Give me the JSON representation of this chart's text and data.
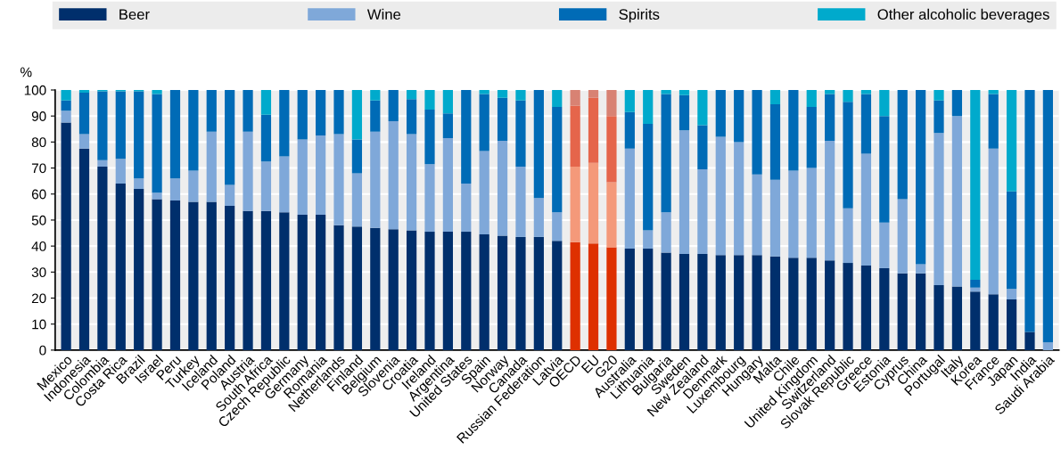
{
  "chart_data": {
    "type": "bar",
    "stacked": true,
    "ylabel": "%",
    "ylim": [
      0,
      100
    ],
    "yticks": [
      0,
      10,
      20,
      30,
      40,
      50,
      60,
      70,
      80,
      90,
      100
    ],
    "grid": "y",
    "legend": "top",
    "categories": [
      "Mexico",
      "Indonesia",
      "Colombia",
      "Costa Rica",
      "Brazil",
      "Israel",
      "Peru",
      "Turkey",
      "Iceland",
      "Poland",
      "Austria",
      "South Africa",
      "Czech Republic",
      "Germany",
      "Romania",
      "Netherlands",
      "Finland",
      "Belgium",
      "Slovenia",
      "Croatia",
      "Ireland",
      "Argentina",
      "United States",
      "Spain",
      "Norway",
      "Canada",
      "Russian Federation",
      "Latvia",
      "OECD",
      "EU",
      "G20",
      "Australia",
      "Lithuania",
      "Bulgaria",
      "Sweden",
      "New Zealand",
      "Denmark",
      "Luxembourg",
      "Hungary",
      "Malta",
      "Chile",
      "United Kingdom",
      "Switzerland",
      "Slovak Republic",
      "Greece",
      "Estonia",
      "Cyprus",
      "China",
      "Portugal",
      "Italy",
      "Korea",
      "France",
      "Japan",
      "India",
      "Saudi Arabia"
    ],
    "series": [
      {
        "name": "Beer",
        "color": "#002f6c",
        "colors": [
          "#002f6c",
          "#002f6c",
          "#002f6c",
          "#002f6c",
          "#002f6c",
          "#002f6c",
          "#002f6c",
          "#002f6c",
          "#002f6c",
          "#002f6c",
          "#002f6c",
          "#002f6c",
          "#002f6c",
          "#002f6c",
          "#002f6c",
          "#002f6c",
          "#002f6c",
          "#002f6c",
          "#002f6c",
          "#002f6c",
          "#002f6c",
          "#002f6c",
          "#002f6c",
          "#002f6c",
          "#002f6c",
          "#002f6c",
          "#002f6c",
          "#002f6c",
          "#de3000",
          "#de3000",
          "#de3000",
          "#002f6c",
          "#002f6c",
          "#002f6c",
          "#002f6c",
          "#002f6c",
          "#002f6c",
          "#002f6c",
          "#002f6c",
          "#002f6c",
          "#002f6c",
          "#002f6c",
          "#002f6c",
          "#002f6c",
          "#002f6c",
          "#002f6c",
          "#002f6c",
          "#002f6c",
          "#002f6c",
          "#002f6c",
          "#002f6c",
          "#002f6c",
          "#002f6c",
          "#002f6c",
          "#002f6c"
        ],
        "values": [
          87.5,
          77.5,
          70.5,
          64,
          62,
          58,
          57.5,
          57,
          57,
          55.5,
          53.5,
          53.5,
          53,
          52,
          52,
          48,
          47.5,
          47,
          46.5,
          46,
          45.5,
          45.5,
          45.5,
          44.5,
          44,
          43.5,
          43.5,
          42,
          41.5,
          41,
          39.5,
          39,
          39,
          37.5,
          37,
          37,
          36.5,
          36.5,
          36.5,
          36,
          35.5,
          35.5,
          34.5,
          33.5,
          32.5,
          31.5,
          29.5,
          29.5,
          25,
          24.5,
          22.5,
          21.5,
          19.5,
          7,
          0
        ]
      },
      {
        "name": "Wine",
        "color": "#7fa8d9",
        "colors": [
          "#7fa8d9",
          "#7fa8d9",
          "#7fa8d9",
          "#7fa8d9",
          "#7fa8d9",
          "#7fa8d9",
          "#7fa8d9",
          "#7fa8d9",
          "#7fa8d9",
          "#7fa8d9",
          "#7fa8d9",
          "#7fa8d9",
          "#7fa8d9",
          "#7fa8d9",
          "#7fa8d9",
          "#7fa8d9",
          "#7fa8d9",
          "#7fa8d9",
          "#7fa8d9",
          "#7fa8d9",
          "#7fa8d9",
          "#7fa8d9",
          "#7fa8d9",
          "#7fa8d9",
          "#7fa8d9",
          "#7fa8d9",
          "#7fa8d9",
          "#7fa8d9",
          "#f4997a",
          "#f4997a",
          "#f4997a",
          "#7fa8d9",
          "#7fa8d9",
          "#7fa8d9",
          "#7fa8d9",
          "#7fa8d9",
          "#7fa8d9",
          "#7fa8d9",
          "#7fa8d9",
          "#7fa8d9",
          "#7fa8d9",
          "#7fa8d9",
          "#7fa8d9",
          "#7fa8d9",
          "#7fa8d9",
          "#7fa8d9",
          "#7fa8d9",
          "#7fa8d9",
          "#7fa8d9",
          "#7fa8d9",
          "#7fa8d9",
          "#7fa8d9",
          "#7fa8d9",
          "#7fa8d9",
          "#7fa8d9"
        ],
        "values": [
          4.5,
          5.5,
          2.5,
          9.5,
          4,
          2.5,
          8.5,
          12,
          27,
          8,
          30.5,
          19,
          21.5,
          29,
          30.5,
          35,
          20.5,
          37,
          41.5,
          37,
          26,
          36,
          18.5,
          32,
          36.5,
          27,
          15,
          11,
          29,
          31,
          25,
          38.5,
          7,
          15.5,
          47.5,
          32.5,
          45.5,
          43.5,
          31,
          29.5,
          33.5,
          34.5,
          46,
          21,
          43,
          17.5,
          28.5,
          3.5,
          58.5,
          65.5,
          1.5,
          56,
          4,
          0,
          3
        ]
      },
      {
        "name": "Spirits",
        "color": "#006bb6",
        "colors": [
          "#006bb6",
          "#006bb6",
          "#006bb6",
          "#006bb6",
          "#006bb6",
          "#006bb6",
          "#006bb6",
          "#006bb6",
          "#006bb6",
          "#006bb6",
          "#006bb6",
          "#006bb6",
          "#006bb6",
          "#006bb6",
          "#006bb6",
          "#006bb6",
          "#006bb6",
          "#006bb6",
          "#006bb6",
          "#006bb6",
          "#006bb6",
          "#006bb6",
          "#006bb6",
          "#006bb6",
          "#006bb6",
          "#006bb6",
          "#006bb6",
          "#006bb6",
          "#e5654b",
          "#e5654b",
          "#e5654b",
          "#006bb6",
          "#006bb6",
          "#006bb6",
          "#006bb6",
          "#006bb6",
          "#006bb6",
          "#006bb6",
          "#006bb6",
          "#006bb6",
          "#006bb6",
          "#006bb6",
          "#006bb6",
          "#006bb6",
          "#006bb6",
          "#006bb6",
          "#006bb6",
          "#006bb6",
          "#006bb6",
          "#006bb6",
          "#006bb6",
          "#006bb6",
          "#006bb6",
          "#006bb6",
          "#006bb6"
        ],
        "values": [
          4,
          16,
          26.5,
          26,
          33.5,
          38,
          34,
          31,
          16,
          36.5,
          16,
          18,
          25.5,
          19,
          17.5,
          17,
          13,
          12,
          12,
          13.5,
          21,
          9.5,
          36,
          22,
          16.5,
          25.5,
          41.5,
          40.5,
          23.5,
          25,
          25.5,
          14,
          41,
          45.5,
          13.5,
          17,
          18,
          20,
          32.5,
          29,
          31,
          23.5,
          18,
          41,
          23,
          41,
          42,
          67,
          12.5,
          10,
          3,
          21,
          37.5,
          93,
          97
        ]
      },
      {
        "name": "Other alcoholic beverages",
        "color": "#00aacc",
        "colors": [
          "#00aacc",
          "#00aacc",
          "#00aacc",
          "#00aacc",
          "#00aacc",
          "#00aacc",
          "#00aacc",
          "#00aacc",
          "#00aacc",
          "#00aacc",
          "#00aacc",
          "#00aacc",
          "#00aacc",
          "#00aacc",
          "#00aacc",
          "#00aacc",
          "#00aacc",
          "#00aacc",
          "#00aacc",
          "#00aacc",
          "#00aacc",
          "#00aacc",
          "#00aacc",
          "#00aacc",
          "#00aacc",
          "#00aacc",
          "#00aacc",
          "#00aacc",
          "#d88273",
          "#d88273",
          "#d88273",
          "#00aacc",
          "#00aacc",
          "#00aacc",
          "#00aacc",
          "#00aacc",
          "#00aacc",
          "#00aacc",
          "#00aacc",
          "#00aacc",
          "#00aacc",
          "#00aacc",
          "#00aacc",
          "#00aacc",
          "#00aacc",
          "#00aacc",
          "#00aacc",
          "#00aacc",
          "#00aacc",
          "#00aacc",
          "#00aacc",
          "#00aacc",
          "#00aacc",
          "#00aacc",
          "#00aacc"
        ],
        "values": [
          4,
          1,
          0.5,
          0.5,
          0.5,
          1.5,
          0,
          0,
          0,
          0,
          0,
          9.5,
          0,
          0,
          0,
          0,
          19,
          4,
          0,
          3.5,
          7.5,
          9,
          0,
          1.5,
          3,
          4,
          0,
          6.5,
          6,
          3,
          10,
          8.5,
          13,
          1.5,
          2,
          13.5,
          0,
          0,
          0,
          5.5,
          0,
          6.5,
          1.5,
          4.5,
          1.5,
          10,
          0,
          0,
          4,
          0,
          73,
          1.5,
          39,
          0,
          0
        ]
      }
    ]
  }
}
